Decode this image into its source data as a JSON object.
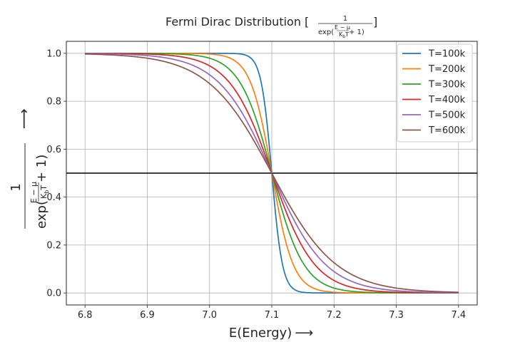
{
  "chart_data": {
    "type": "line",
    "title": {
      "prefix": "Fermi Dirac Distribution [",
      "suffix": "]",
      "frac_numerator": "1",
      "frac_denominator_pre": "exp(",
      "frac_denominator_mid_num": "E − μ",
      "frac_denominator_mid_den": "K",
      "frac_denominator_mid_den_sub": "b",
      "frac_denominator_mid_den_var": "T",
      "frac_denominator_post": " + 1)"
    },
    "xlabel": "E(Energy)",
    "xlabel_arrow": "⟶",
    "ylabel": {
      "numerator": "1",
      "denominator_pre": "exp(",
      "denominator_post": " + 1)",
      "mid_num": "E − μ",
      "mid_den": "K",
      "mid_den_sub": "b",
      "mid_den_var": "T",
      "arrow": "⟶"
    },
    "xlim": [
      6.77,
      7.43
    ],
    "ylim": [
      -0.05,
      1.05
    ],
    "xticks": [
      6.8,
      6.9,
      7.0,
      7.1,
      7.2,
      7.3,
      7.4
    ],
    "xtick_labels": [
      "6.8",
      "6.9",
      "7.0",
      "7.1",
      "7.2",
      "7.3",
      "7.4"
    ],
    "yticks": [
      0.0,
      0.2,
      0.4,
      0.6,
      0.8,
      1.0
    ],
    "ytick_labels": [
      "0.0",
      "0.2",
      "0.4",
      "0.6",
      "0.8",
      "1.0"
    ],
    "grid": true,
    "legend_position": "top-right",
    "mu": 7.1,
    "x_range": [
      6.8,
      7.4
    ],
    "series": [
      {
        "name": "T=100k",
        "temperature": 100,
        "color": "#1f77b4"
      },
      {
        "name": "T=200k",
        "temperature": 200,
        "color": "#ff7f0e"
      },
      {
        "name": "T=300k",
        "temperature": 300,
        "color": "#2ca02c"
      },
      {
        "name": "T=400k",
        "temperature": 400,
        "color": "#d62728"
      },
      {
        "name": "T=500k",
        "temperature": 500,
        "color": "#9467bd"
      },
      {
        "name": "T=600k",
        "temperature": 600,
        "color": "#8c564b"
      }
    ],
    "reference_line": {
      "y": 0.5,
      "color": "#000000"
    }
  }
}
